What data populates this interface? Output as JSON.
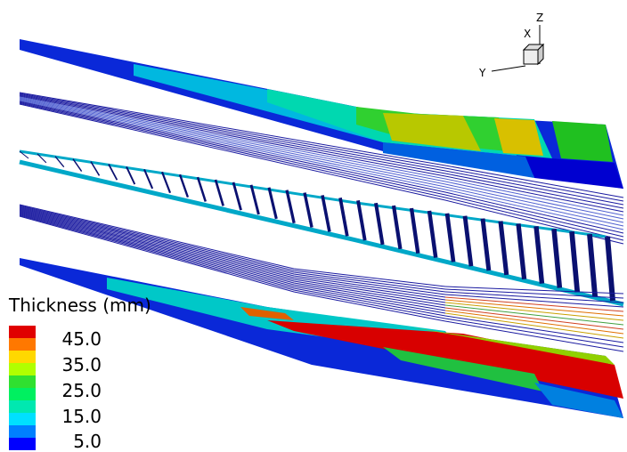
{
  "legend": {
    "title": "Thickness (mm)",
    "labels": [
      "45.0",
      "35.0",
      "25.0",
      "15.0",
      "5.0"
    ]
  },
  "axes": {
    "z": "Z",
    "x": "X",
    "y": "Y"
  }
}
